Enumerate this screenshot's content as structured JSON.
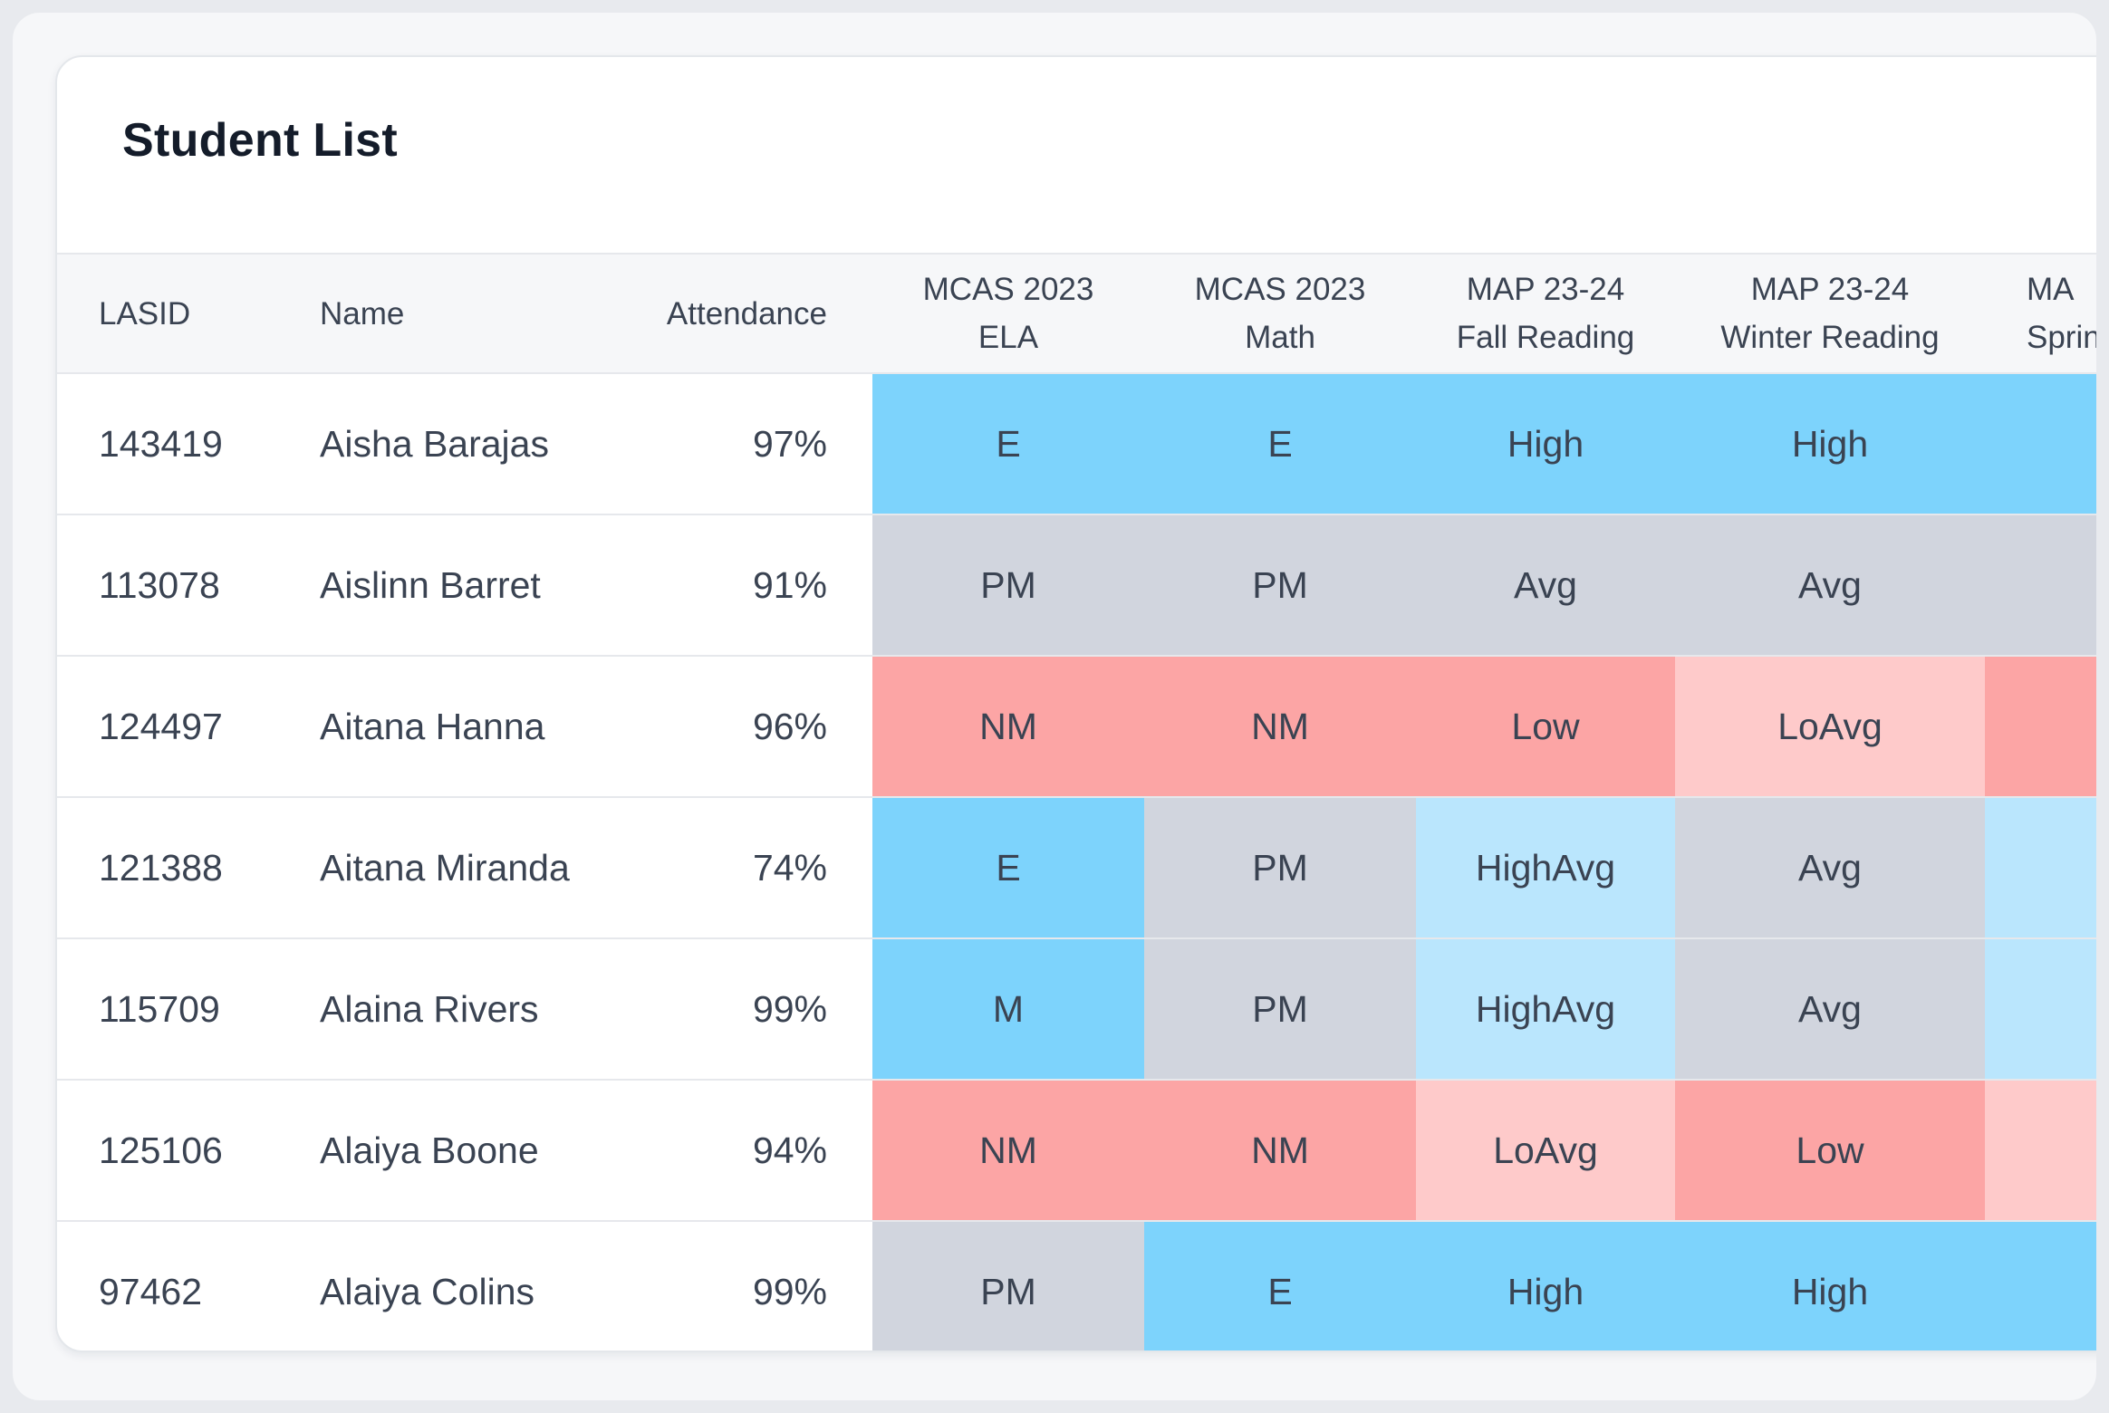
{
  "card": {
    "title": "Student List"
  },
  "columns": {
    "lasid": [
      "LASID"
    ],
    "name": [
      "Name"
    ],
    "attendance": [
      "Attendance"
    ],
    "mcas_ela": [
      "MCAS 2023",
      "ELA"
    ],
    "mcas_math": [
      "MCAS 2023",
      "Math"
    ],
    "map_fall": [
      "MAP 23-24",
      "Fall Reading"
    ],
    "map_winter": [
      "MAP 23-24",
      "Winter Reading"
    ],
    "map_spring": [
      "MA",
      "Sprin"
    ]
  },
  "colors": {
    "exceeds": "#7dd3fc",
    "high_avg": "#bae6fd",
    "neutral": "#d1d5de",
    "low_avg": "#fecaca",
    "not_met": "#fca5a5"
  },
  "rows": [
    {
      "lasid": "143419",
      "name": "Aisha Barajas",
      "attendance": "97%",
      "ela": "E",
      "math": "E",
      "fall": "High",
      "winter": "High",
      "spring": "",
      "ela_color": "#7dd3fc",
      "math_color": "#7dd3fc",
      "fall_color": "#7dd3fc",
      "winter_color": "#7dd3fc",
      "spring_color": "#7dd3fc"
    },
    {
      "lasid": "113078",
      "name": "Aislinn Barret",
      "attendance": "91%",
      "ela": "PM",
      "math": "PM",
      "fall": "Avg",
      "winter": "Avg",
      "spring": "",
      "ela_color": "#d1d5de",
      "math_color": "#d1d5de",
      "fall_color": "#d1d5de",
      "winter_color": "#d1d5de",
      "spring_color": "#d1d5de"
    },
    {
      "lasid": "124497",
      "name": "Aitana Hanna",
      "attendance": "96%",
      "ela": "NM",
      "math": "NM",
      "fall": "Low",
      "winter": "LoAvg",
      "spring": "",
      "ela_color": "#fca5a5",
      "math_color": "#fca5a5",
      "fall_color": "#fca5a5",
      "winter_color": "#fecaca",
      "spring_color": "#fca5a5"
    },
    {
      "lasid": "121388",
      "name": "Aitana Miranda",
      "attendance": "74%",
      "ela": "E",
      "math": "PM",
      "fall": "HighAvg",
      "winter": "Avg",
      "spring": "",
      "ela_color": "#7dd3fc",
      "math_color": "#d1d5de",
      "fall_color": "#bae6fd",
      "winter_color": "#d1d5de",
      "spring_color": "#bae6fd"
    },
    {
      "lasid": "115709",
      "name": "Alaina Rivers",
      "attendance": "99%",
      "ela": "M",
      "math": "PM",
      "fall": "HighAvg",
      "winter": "Avg",
      "spring": "",
      "ela_color": "#7dd3fc",
      "math_color": "#d1d5de",
      "fall_color": "#bae6fd",
      "winter_color": "#d1d5de",
      "spring_color": "#bae6fd"
    },
    {
      "lasid": "125106",
      "name": "Alaiya Boone",
      "attendance": "94%",
      "ela": "NM",
      "math": "NM",
      "fall": "LoAvg",
      "winter": "Low",
      "spring": "",
      "ela_color": "#fca5a5",
      "math_color": "#fca5a5",
      "fall_color": "#fecaca",
      "winter_color": "#fca5a5",
      "spring_color": "#fecaca"
    },
    {
      "lasid": "97462",
      "name": "Alaiya Colins",
      "attendance": "99%",
      "ela": "PM",
      "math": "E",
      "fall": "High",
      "winter": "High",
      "spring": "",
      "ela_color": "#d1d5de",
      "math_color": "#7dd3fc",
      "fall_color": "#7dd3fc",
      "winter_color": "#7dd3fc",
      "spring_color": "#7dd3fc"
    }
  ]
}
